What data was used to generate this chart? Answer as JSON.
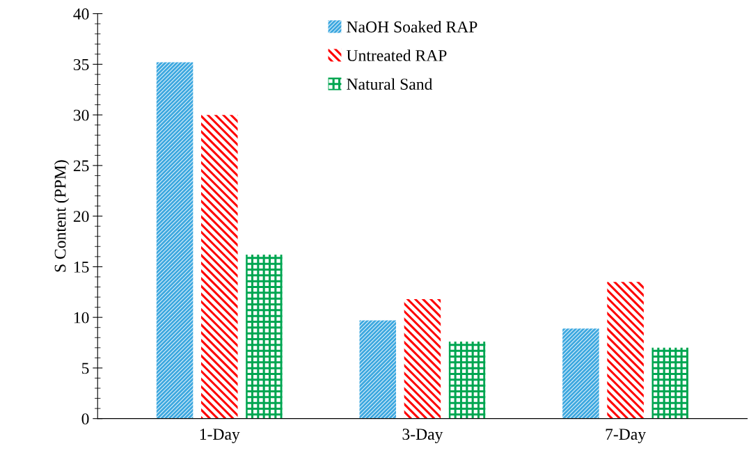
{
  "chart_data": {
    "type": "bar",
    "ylabel": "S Content (PPM)",
    "categories": [
      "1-Day",
      "3-Day",
      "7-Day"
    ],
    "series": [
      {
        "name": "NaOH Soaked RAP",
        "color": "#3fa9e0",
        "values": [
          35.2,
          9.7,
          8.9
        ]
      },
      {
        "name": "Untreated RAP",
        "color": "#ff0000",
        "values": [
          30.0,
          11.8,
          13.5
        ]
      },
      {
        "name": "Natural Sand",
        "color": "#00a651",
        "values": [
          16.2,
          7.6,
          7.0
        ]
      }
    ],
    "ylim": [
      0,
      40
    ],
    "yticks": [
      0,
      5,
      10,
      15,
      20,
      25,
      30,
      35,
      40
    ],
    "grid": false,
    "legend": "top"
  }
}
